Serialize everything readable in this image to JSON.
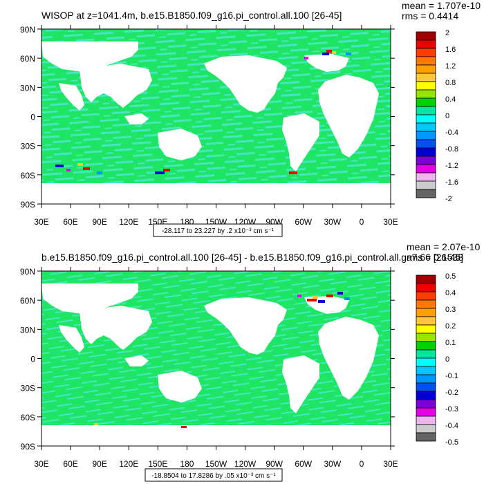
{
  "chart_data": [
    {
      "type": "heatmap",
      "title": "WISOP at z=1041.4m, b.e15.B1850.f09_g16.pi_control.all.100 [26-45]",
      "stats": [
        "mean = 1.707e-10",
        "rms = 0.4414"
      ],
      "info_label": "-28.117 to 23.227 by .2 x10⁻³ cm s⁻¹",
      "x_ticks": [
        "30E",
        "60E",
        "90E",
        "120E",
        "150E",
        "180",
        "150W",
        "120W",
        "90W",
        "60W",
        "30W",
        "0",
        "30E"
      ],
      "y_ticks": [
        "90N",
        "60N",
        "30N",
        "0",
        "30S",
        "60S",
        "90S"
      ],
      "xlim": [
        30,
        390
      ],
      "ylim": [
        -90,
        90
      ],
      "colorbar": {
        "labels": [
          "2",
          "1.6",
          "1.2",
          "0.8",
          "0.4",
          "0",
          "-0.4",
          "-0.8",
          "-1.2",
          "-1.6",
          "-2"
        ],
        "colors": [
          "#a00000",
          "#ee0000",
          "#ff3c00",
          "#ff7a00",
          "#ffa000",
          "#ffc83c",
          "#ffff00",
          "#96e600",
          "#00d200",
          "#00e6a0",
          "#00ffff",
          "#00c8ff",
          "#0096ff",
          "#0050f0",
          "#0000d2",
          "#7d00d2",
          "#e600e6",
          "#f0b4f0",
          "#cccccc",
          "#646464"
        ]
      }
    },
    {
      "type": "heatmap",
      "title": "b.e15.B1850.f09_g16.pi_control.all.100 [26-45] - b.e15.B1850.f09_g16.pi_control.all.ga7.66 [26-45]",
      "stats": [
        "mean = 2.07e-10",
        "rms = 0.1538"
      ],
      "info_label": "-18.8504 to 17.8286 by .05 x10⁻³ cm s⁻¹",
      "x_ticks": [
        "30E",
        "60E",
        "90E",
        "120E",
        "150E",
        "180",
        "150W",
        "120W",
        "90W",
        "60W",
        "30W",
        "0",
        "30E"
      ],
      "y_ticks": [
        "90N",
        "60N",
        "30N",
        "0",
        "30S",
        "60S",
        "90S"
      ],
      "xlim": [
        30,
        390
      ],
      "ylim": [
        -90,
        90
      ],
      "colorbar": {
        "labels": [
          "0.5",
          "0.4",
          "0.3",
          "0.2",
          "0.1",
          "0",
          "-0.1",
          "-0.2",
          "-0.3",
          "-0.4",
          "-0.5"
        ],
        "colors": [
          "#a00000",
          "#ee0000",
          "#ff3c00",
          "#ff7a00",
          "#ffa000",
          "#ffc83c",
          "#ffff00",
          "#96e600",
          "#00d200",
          "#00e6a0",
          "#00ffff",
          "#00c8ff",
          "#0096ff",
          "#0050f0",
          "#0000d2",
          "#7d00d2",
          "#e600e6",
          "#f0b4f0",
          "#cccccc",
          "#646464"
        ]
      }
    }
  ],
  "palette": {
    "field_green": "#1ee664",
    "field_teal": "#46e6be",
    "land": "#ffffff"
  }
}
